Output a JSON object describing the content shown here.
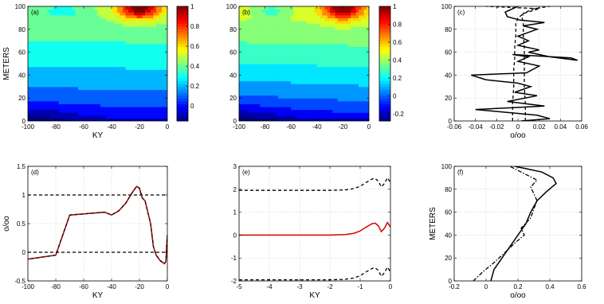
{
  "panels": [
    {
      "label": "(a)",
      "type": "contour",
      "xlabel": "KY",
      "ylabel": "METERS",
      "xlim": [
        -100,
        0
      ],
      "ylim": [
        0,
        100
      ],
      "xticks": [
        -100,
        -80,
        -60,
        -40,
        -20,
        0
      ],
      "yticks": [
        0,
        20,
        40,
        60,
        80,
        100
      ],
      "colorbar": {
        "range": [
          -0.15,
          1
        ],
        "ticks": [
          0,
          0.2,
          0.4,
          0.6,
          0.8,
          1
        ]
      },
      "peak": {
        "x": -20,
        "y": 100
      }
    },
    {
      "label": "(b)",
      "type": "contour",
      "xlabel": "",
      "ylabel": "",
      "xlim": [
        -100,
        0
      ],
      "ylim": [
        0,
        100
      ],
      "xticks": [
        -100,
        -80,
        -60,
        -40,
        -20,
        0
      ],
      "yticks": [
        0,
        20,
        40,
        60,
        80,
        100
      ],
      "colorbar": {
        "range": [
          -0.28,
          1
        ],
        "ticks": [
          -0.2,
          0,
          0.2,
          0.4,
          0.6,
          0.8,
          1
        ]
      },
      "peak": {
        "x": -20,
        "y": 100
      }
    },
    {
      "label": "(c)",
      "type": "line",
      "xlabel": "o/oo",
      "ylabel": "",
      "xlim": [
        -0.06,
        0.06
      ],
      "ylim": [
        0,
        100
      ],
      "xticks": [
        -0.06,
        -0.04,
        -0.02,
        0,
        0.02,
        0.04,
        0.06
      ],
      "yticks": [
        0,
        20,
        40,
        60,
        80,
        100
      ],
      "grid": true,
      "series": [
        {
          "style": "solid",
          "color": "#000000",
          "x": [
            0.003,
            0.03,
            0.018,
            -0.04,
            0.025,
            -0.01,
            0.018,
            -0.003,
            0.012,
            0.0,
            -0.03,
            -0.044,
            0.008,
            0.02,
            0.0,
            0.01,
            -0.005,
            0.05,
            0.056,
            0.03,
            0.01,
            0.02,
            0.0,
            0.01,
            0.0,
            0.018,
            0.005,
            0.025,
            0.002,
            -0.01,
            -0.012,
            0.0
          ],
          "y": [
            0,
            2,
            5,
            10,
            13,
            17,
            22,
            25,
            30,
            33,
            36,
            40,
            42,
            48,
            52,
            56,
            58,
            55,
            53,
            56,
            60,
            62,
            66,
            70,
            74,
            80,
            83,
            86,
            88,
            91,
            95,
            100
          ]
        },
        {
          "style": "dashed",
          "color": "#000000",
          "x": [
            -0.005,
            -0.005,
            -0.004,
            -0.004,
            -0.003,
            -0.003,
            -0.002,
            -0.002,
            0.0,
            0.006,
            0.02,
            -0.03
          ],
          "y": [
            0,
            15,
            30,
            45,
            55,
            65,
            75,
            85,
            90,
            94,
            98,
            100
          ]
        },
        {
          "style": "dashed",
          "color": "#000000",
          "x": [
            0.007,
            0.007,
            0.006,
            0.006,
            0.006,
            0.006,
            0.005,
            0.005,
            0.004,
            0.005,
            0.015,
            0.03
          ],
          "y": [
            0,
            15,
            30,
            45,
            55,
            65,
            75,
            85,
            90,
            94,
            98,
            100
          ]
        }
      ]
    },
    {
      "label": "(d)",
      "type": "line",
      "xlabel": "KY",
      "ylabel": "o/oo",
      "xlim": [
        -100,
        0
      ],
      "ylim": [
        -0.5,
        1.5
      ],
      "xticks": [
        -100,
        -80,
        -60,
        -40,
        -20,
        0
      ],
      "yticks": [
        -0.5,
        0,
        0.5,
        1,
        1.5
      ],
      "grid": true,
      "series": [
        {
          "style": "solid",
          "color": "#000000",
          "x": [
            -100,
            -80,
            -70,
            -45,
            -40,
            -35,
            -30,
            -25,
            -22,
            -20,
            -18,
            -16,
            -12,
            -10,
            -8,
            -5,
            -2,
            -1,
            -0.5,
            0
          ],
          "y": [
            -0.12,
            -0.05,
            0.65,
            0.7,
            0.65,
            0.72,
            0.85,
            1.05,
            1.15,
            1.12,
            0.95,
            0.9,
            0.5,
            0.1,
            -0.05,
            -0.15,
            -0.2,
            -0.15,
            0.1,
            0.3
          ]
        },
        {
          "style": "dashed",
          "color": "#d80000",
          "x": [
            -100,
            -80,
            -70,
            -45,
            -40,
            -35,
            -30,
            -25,
            -22,
            -20,
            -18,
            -16,
            -12,
            -10,
            -8,
            -5,
            -2,
            -1,
            -0.5,
            0
          ],
          "y": [
            -0.12,
            -0.05,
            0.65,
            0.7,
            0.65,
            0.72,
            0.85,
            1.05,
            1.15,
            1.12,
            0.95,
            0.9,
            0.5,
            0.1,
            -0.05,
            -0.15,
            -0.2,
            -0.15,
            0.1,
            0.3
          ]
        },
        {
          "style": "dashed",
          "color": "#000000",
          "x": [
            -100,
            0
          ],
          "y": [
            1,
            1
          ]
        },
        {
          "style": "dashed",
          "color": "#000000",
          "x": [
            -100,
            0
          ],
          "y": [
            0,
            0
          ]
        }
      ]
    },
    {
      "label": "(e)",
      "type": "line",
      "xlabel": "KY",
      "ylabel": "",
      "xlim": [
        -5,
        0
      ],
      "ylim": [
        -2,
        3
      ],
      "xticks": [
        -5,
        -4,
        -3,
        -2,
        -1,
        0
      ],
      "yticks": [
        -2,
        -1,
        0,
        1,
        2,
        3
      ],
      "grid": true,
      "series": [
        {
          "style": "solid",
          "color": "#d80000",
          "x": [
            -5,
            -2,
            -1.5,
            -1.2,
            -1,
            -0.8,
            -0.6,
            -0.5,
            -0.4,
            -0.3,
            -0.2,
            -0.1,
            0
          ],
          "y": [
            0,
            0,
            0.02,
            0.08,
            0.18,
            0.35,
            0.5,
            0.52,
            0.4,
            0.15,
            0.3,
            0.55,
            0.35
          ]
        },
        {
          "style": "dashed",
          "color": "#000000",
          "x": [
            -5,
            -2,
            -1.5,
            -1.2,
            -1,
            -0.8,
            -0.6,
            -0.5,
            -0.4,
            -0.3,
            -0.2,
            -0.1,
            0
          ],
          "y": [
            1.95,
            1.95,
            1.97,
            2.03,
            2.13,
            2.3,
            2.45,
            2.47,
            2.35,
            2.1,
            2.25,
            2.5,
            2.3
          ]
        },
        {
          "style": "dashed",
          "color": "#000000",
          "x": [
            -5,
            -2,
            -1.5,
            -1.2,
            -1,
            -0.8,
            -0.6,
            -0.5,
            -0.4,
            -0.3,
            -0.2,
            -0.1,
            0
          ],
          "y": [
            -1.95,
            -1.95,
            -1.93,
            -1.87,
            -1.77,
            -1.6,
            -1.45,
            -1.43,
            -1.55,
            -1.8,
            -1.65,
            -1.4,
            -1.6
          ]
        }
      ]
    },
    {
      "label": "(f)",
      "type": "line",
      "xlabel": "o/oo",
      "ylabel": "METERS",
      "xlim": [
        -0.2,
        0.6
      ],
      "ylim": [
        0,
        100
      ],
      "xticks": [
        -0.2,
        0,
        0.2,
        0.4,
        0.6
      ],
      "yticks": [
        0,
        20,
        40,
        60,
        80,
        100
      ],
      "grid": true,
      "series": [
        {
          "style": "solid",
          "color": "#000000",
          "x": [
            0.03,
            0.05,
            0.1,
            0.15,
            0.2,
            0.25,
            0.28,
            0.32,
            0.38,
            0.44,
            0.42,
            0.35,
            0.25,
            0.18
          ],
          "y": [
            0,
            10,
            20,
            30,
            40,
            50,
            60,
            70,
            78,
            85,
            90,
            95,
            98,
            100
          ]
        },
        {
          "style": "dashdot",
          "color": "#000000",
          "x": [
            -0.08,
            -0.02,
            0.05,
            0.12,
            0.18,
            0.24,
            0.22,
            0.28,
            0.3,
            0.32,
            0.3,
            0.28,
            0.32,
            0.22,
            0.15
          ],
          "y": [
            0,
            8,
            16,
            25,
            33,
            40,
            46,
            55,
            63,
            70,
            76,
            82,
            88,
            95,
            100
          ]
        }
      ]
    }
  ]
}
